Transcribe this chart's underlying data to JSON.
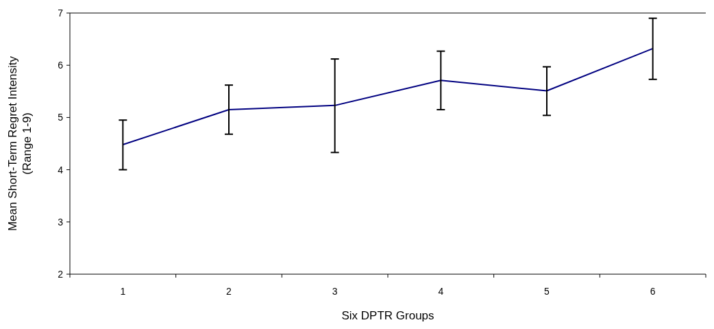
{
  "chart_data": {
    "type": "line",
    "xlabel": "Six DPTR Groups",
    "ylabel": "Mean Short-Term Regret Intensity\n(Range 1-9)",
    "categories": [
      "1",
      "2",
      "3",
      "4",
      "5",
      "6"
    ],
    "series": [
      {
        "color": "#000080",
        "values": [
          4.48,
          5.15,
          5.23,
          5.71,
          5.51,
          6.32
        ],
        "errors": [
          [
            4.0,
            4.95
          ],
          [
            4.68,
            5.62
          ],
          [
            4.33,
            6.12
          ],
          [
            5.15,
            6.27
          ],
          [
            5.04,
            5.97
          ],
          [
            5.73,
            6.9
          ]
        ]
      }
    ],
    "ylim": [
      2,
      7
    ],
    "yticks": [
      2,
      3,
      4,
      5,
      6,
      7
    ],
    "grid": false,
    "marker": "none",
    "line_style": "solid"
  }
}
